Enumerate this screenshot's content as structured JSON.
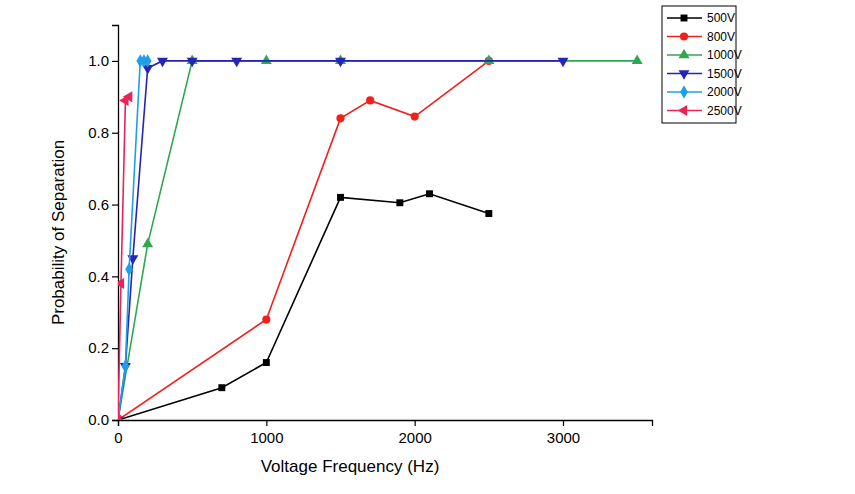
{
  "chart_data": {
    "type": "line",
    "x_label": "Voltage Frequency (Hz)",
    "y_label": "Probability of Separation",
    "xlim": [
      0,
      3600
    ],
    "ylim": [
      0,
      1.1
    ],
    "xticks": [
      0,
      1000,
      2000,
      3000
    ],
    "yticks": [
      {
        "value": 0,
        "label": "0.0"
      },
      {
        "value": 0.2,
        "label": "0.2"
      },
      {
        "value": 0.4,
        "label": "0.4"
      },
      {
        "value": 0.6,
        "label": "0.6"
      },
      {
        "value": 0.8,
        "label": "0.8"
      },
      {
        "value": 1.0,
        "label": "1.0"
      }
    ],
    "grid": false,
    "legend": "upper right",
    "series": [
      {
        "name": "500V",
        "color": "#000000",
        "marker": "square",
        "x": [
          0,
          700,
          1000,
          1500,
          1900,
          2100,
          2500
        ],
        "values": [
          0,
          0.09,
          0.16,
          0.62,
          0.605,
          0.63,
          0.575
        ]
      },
      {
        "name": "800V",
        "color": "#f0201c",
        "marker": "circle",
        "x": [
          0,
          1000,
          1500,
          1700,
          2000,
          2500
        ],
        "values": [
          0,
          0.28,
          0.84,
          0.89,
          0.845,
          1.0
        ]
      },
      {
        "name": "1000V",
        "color": "#2fa84f",
        "marker": "triangle",
        "x": [
          0,
          200,
          500,
          1000,
          1500,
          2500,
          3500
        ],
        "values": [
          0,
          0.49,
          1.0,
          1.0,
          1.0,
          1.0,
          1.0
        ]
      },
      {
        "name": "1500V",
        "color": "#2424b8",
        "marker": "triangle-down",
        "x": [
          0,
          50,
          100,
          200,
          300,
          500,
          800,
          1500,
          3000
        ],
        "values": [
          0,
          0.15,
          0.45,
          0.98,
          1.0,
          1.0,
          1.0,
          1.0,
          1.0
        ]
      },
      {
        "name": "2000V",
        "color": "#1f9fe8",
        "marker": "diamond",
        "x": [
          0,
          50,
          75,
          150,
          175,
          200
        ],
        "values": [
          0,
          0.15,
          0.42,
          1.0,
          1.0,
          1.0
        ]
      },
      {
        "name": "2500V",
        "color": "#e8245a",
        "marker": "triangle-left",
        "x": [
          0,
          20,
          50,
          75
        ],
        "values": [
          0,
          0.38,
          0.89,
          0.9
        ]
      }
    ]
  }
}
